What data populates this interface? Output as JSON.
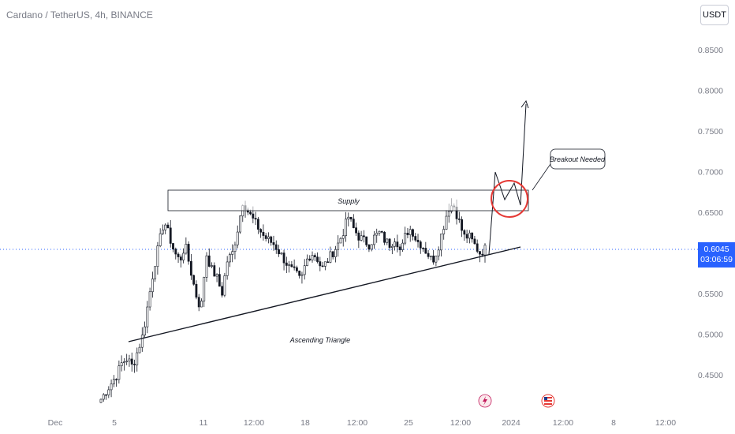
{
  "header": {
    "symbol_title": "Cardano / TetherUS, 4h, BINANCE",
    "currency": "USDT"
  },
  "price_label": {
    "price": "0.6045",
    "countdown": "03:06:59"
  },
  "chart_data": {
    "type": "candlestick",
    "title": "Cardano / TetherUS, 4h, BINANCE",
    "y_axis": {
      "side": "right",
      "range": [
        0.4,
        0.9
      ],
      "ticks": [
        "0.8500",
        "0.8000",
        "0.7500",
        "0.7000",
        "0.6500",
        "0.6000",
        "0.5500",
        "0.5000",
        "0.4500"
      ],
      "tick_values": [
        0.85,
        0.8,
        0.75,
        0.7,
        0.65,
        0.6,
        0.55,
        0.5,
        0.45
      ]
    },
    "x_axis": {
      "ticks": [
        "Dec",
        "5",
        "11",
        "12:00",
        "18",
        "12:00",
        "25",
        "12:00",
        "2024",
        "12:00",
        "8",
        "12:00"
      ]
    },
    "current_price": 0.6045,
    "trend": [
      0.42,
      0.43,
      0.44,
      0.45,
      0.465,
      0.47,
      0.46,
      0.48,
      0.5,
      0.54,
      0.58,
      0.61,
      0.64,
      0.62,
      0.6,
      0.59,
      0.61,
      0.58,
      0.55,
      0.53,
      0.6,
      0.58,
      0.57,
      0.55,
      0.59,
      0.6,
      0.63,
      0.665,
      0.65,
      0.64,
      0.63,
      0.62,
      0.615,
      0.61,
      0.6,
      0.59,
      0.58,
      0.575,
      0.565,
      0.59,
      0.6,
      0.595,
      0.58,
      0.59,
      0.6,
      0.61,
      0.625,
      0.645,
      0.63,
      0.62,
      0.615,
      0.61,
      0.62,
      0.625,
      0.615,
      0.61,
      0.62,
      0.6,
      0.625,
      0.63,
      0.615,
      0.61,
      0.6,
      0.59,
      0.605,
      0.63,
      0.655,
      0.66,
      0.64,
      0.62,
      0.62,
      0.61,
      0.6,
      0.605
    ],
    "annotations": {
      "supply_label": "Supply",
      "triangle_label": "Ascending Triangle",
      "callout_label": "Breakout Needed"
    }
  }
}
